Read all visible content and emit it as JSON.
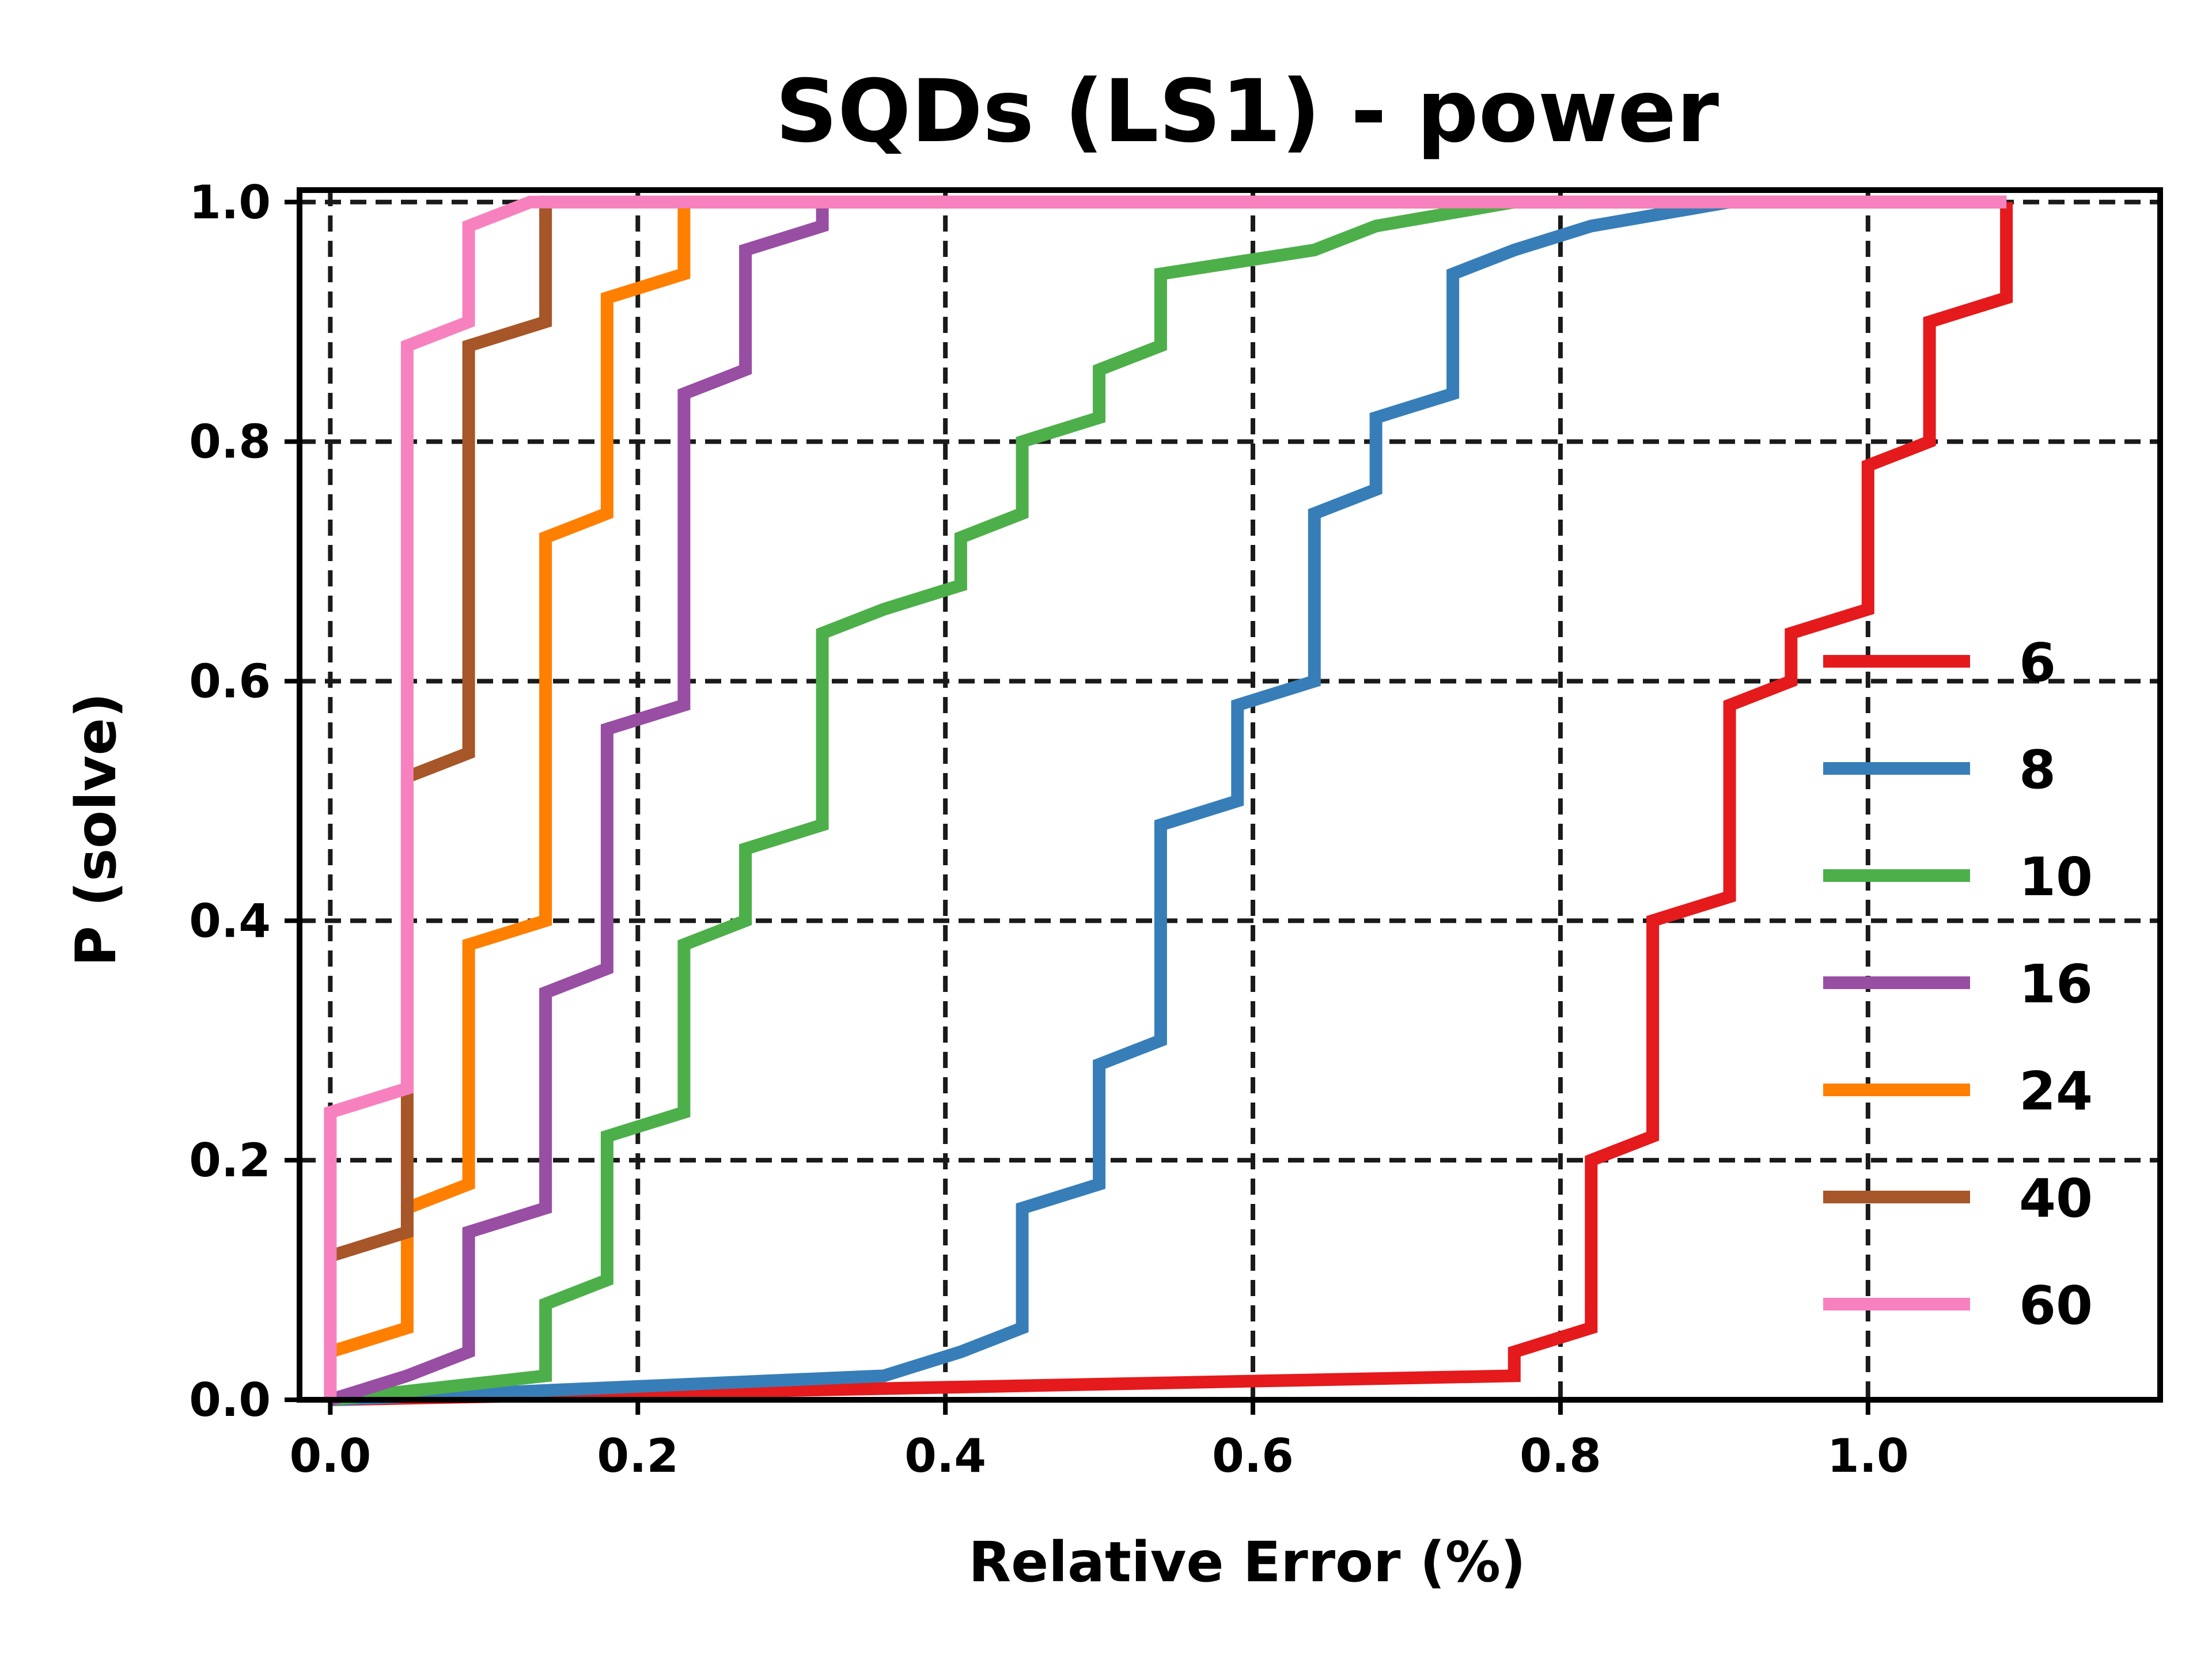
{
  "chart_data": {
    "type": "line",
    "title": "SQDs (LS1) - power",
    "xlabel": "Relative Error (%)",
    "ylabel": "P (solve)",
    "xlim": [
      -0.02,
      1.19
    ],
    "ylim": [
      0.0,
      1.01
    ],
    "xticks": [
      "0.0",
      "0.2",
      "0.4",
      "0.6",
      "0.8",
      "1.0"
    ],
    "yticks": [
      "0.0",
      "0.2",
      "0.4",
      "0.6",
      "0.8",
      "1.0"
    ],
    "grid": true,
    "legend_position": "lower-right",
    "series": [
      {
        "name": "6",
        "color": "#e41a1c",
        "points": [
          [
            0.0,
            0.0
          ],
          [
            0.77,
            0.02
          ],
          [
            0.77,
            0.04
          ],
          [
            0.82,
            0.06
          ],
          [
            0.82,
            0.2
          ],
          [
            0.86,
            0.22
          ],
          [
            0.86,
            0.4
          ],
          [
            0.91,
            0.42
          ],
          [
            0.91,
            0.58
          ],
          [
            0.95,
            0.6
          ],
          [
            0.95,
            0.64
          ],
          [
            1.0,
            0.66
          ],
          [
            1.0,
            0.78
          ],
          [
            1.04,
            0.8
          ],
          [
            1.04,
            0.9
          ],
          [
            1.09,
            0.92
          ],
          [
            1.09,
            1.0
          ]
        ]
      },
      {
        "name": "8",
        "color": "#377eb8",
        "points": [
          [
            0.0,
            0.0
          ],
          [
            0.36,
            0.02
          ],
          [
            0.41,
            0.04
          ],
          [
            0.45,
            0.06
          ],
          [
            0.45,
            0.16
          ],
          [
            0.5,
            0.18
          ],
          [
            0.5,
            0.28
          ],
          [
            0.54,
            0.3
          ],
          [
            0.54,
            0.48
          ],
          [
            0.59,
            0.5
          ],
          [
            0.59,
            0.58
          ],
          [
            0.64,
            0.6
          ],
          [
            0.64,
            0.74
          ],
          [
            0.68,
            0.76
          ],
          [
            0.68,
            0.82
          ],
          [
            0.73,
            0.84
          ],
          [
            0.73,
            0.94
          ],
          [
            0.77,
            0.96
          ],
          [
            0.82,
            0.98
          ],
          [
            0.91,
            1.0
          ],
          [
            1.09,
            1.0
          ]
        ]
      },
      {
        "name": "10",
        "color": "#4daf4a",
        "points": [
          [
            0.0,
            0.0
          ],
          [
            0.14,
            0.02
          ],
          [
            0.14,
            0.08
          ],
          [
            0.18,
            0.1
          ],
          [
            0.18,
            0.22
          ],
          [
            0.23,
            0.24
          ],
          [
            0.23,
            0.38
          ],
          [
            0.27,
            0.4
          ],
          [
            0.27,
            0.46
          ],
          [
            0.32,
            0.48
          ],
          [
            0.32,
            0.64
          ],
          [
            0.36,
            0.66
          ],
          [
            0.41,
            0.68
          ],
          [
            0.41,
            0.72
          ],
          [
            0.45,
            0.74
          ],
          [
            0.45,
            0.8
          ],
          [
            0.5,
            0.82
          ],
          [
            0.5,
            0.86
          ],
          [
            0.54,
            0.88
          ],
          [
            0.54,
            0.94
          ],
          [
            0.64,
            0.96
          ],
          [
            0.68,
            0.98
          ],
          [
            0.77,
            1.0
          ],
          [
            1.09,
            1.0
          ]
        ]
      },
      {
        "name": "16",
        "color": "#984ea3",
        "points": [
          [
            0.0,
            0.0
          ],
          [
            0.05,
            0.02
          ],
          [
            0.09,
            0.04
          ],
          [
            0.09,
            0.14
          ],
          [
            0.14,
            0.16
          ],
          [
            0.14,
            0.34
          ],
          [
            0.18,
            0.36
          ],
          [
            0.18,
            0.56
          ],
          [
            0.23,
            0.58
          ],
          [
            0.23,
            0.84
          ],
          [
            0.27,
            0.86
          ],
          [
            0.27,
            0.96
          ],
          [
            0.32,
            0.98
          ],
          [
            0.32,
            1.0
          ],
          [
            1.09,
            1.0
          ]
        ]
      },
      {
        "name": "24",
        "color": "#ff7f00",
        "points": [
          [
            0.0,
            0.04
          ],
          [
            0.05,
            0.06
          ],
          [
            0.05,
            0.16
          ],
          [
            0.09,
            0.18
          ],
          [
            0.09,
            0.38
          ],
          [
            0.14,
            0.4
          ],
          [
            0.14,
            0.72
          ],
          [
            0.18,
            0.74
          ],
          [
            0.18,
            0.92
          ],
          [
            0.23,
            0.94
          ],
          [
            0.23,
            1.0
          ],
          [
            1.09,
            1.0
          ]
        ]
      },
      {
        "name": "40",
        "color": "#a65628",
        "points": [
          [
            0.0,
            0.12
          ],
          [
            0.05,
            0.14
          ],
          [
            0.05,
            0.26
          ],
          [
            0.05,
            0.52
          ],
          [
            0.09,
            0.54
          ],
          [
            0.09,
            0.88
          ],
          [
            0.14,
            0.9
          ],
          [
            0.14,
            1.0
          ],
          [
            1.09,
            1.0
          ]
        ]
      },
      {
        "name": "60",
        "color": "#f781bf",
        "points": [
          [
            0.0,
            0.0
          ],
          [
            0.0,
            0.24
          ],
          [
            0.05,
            0.26
          ],
          [
            0.05,
            0.88
          ],
          [
            0.09,
            0.9
          ],
          [
            0.09,
            0.98
          ],
          [
            0.13,
            1.0
          ],
          [
            1.09,
            1.0
          ]
        ]
      }
    ]
  }
}
